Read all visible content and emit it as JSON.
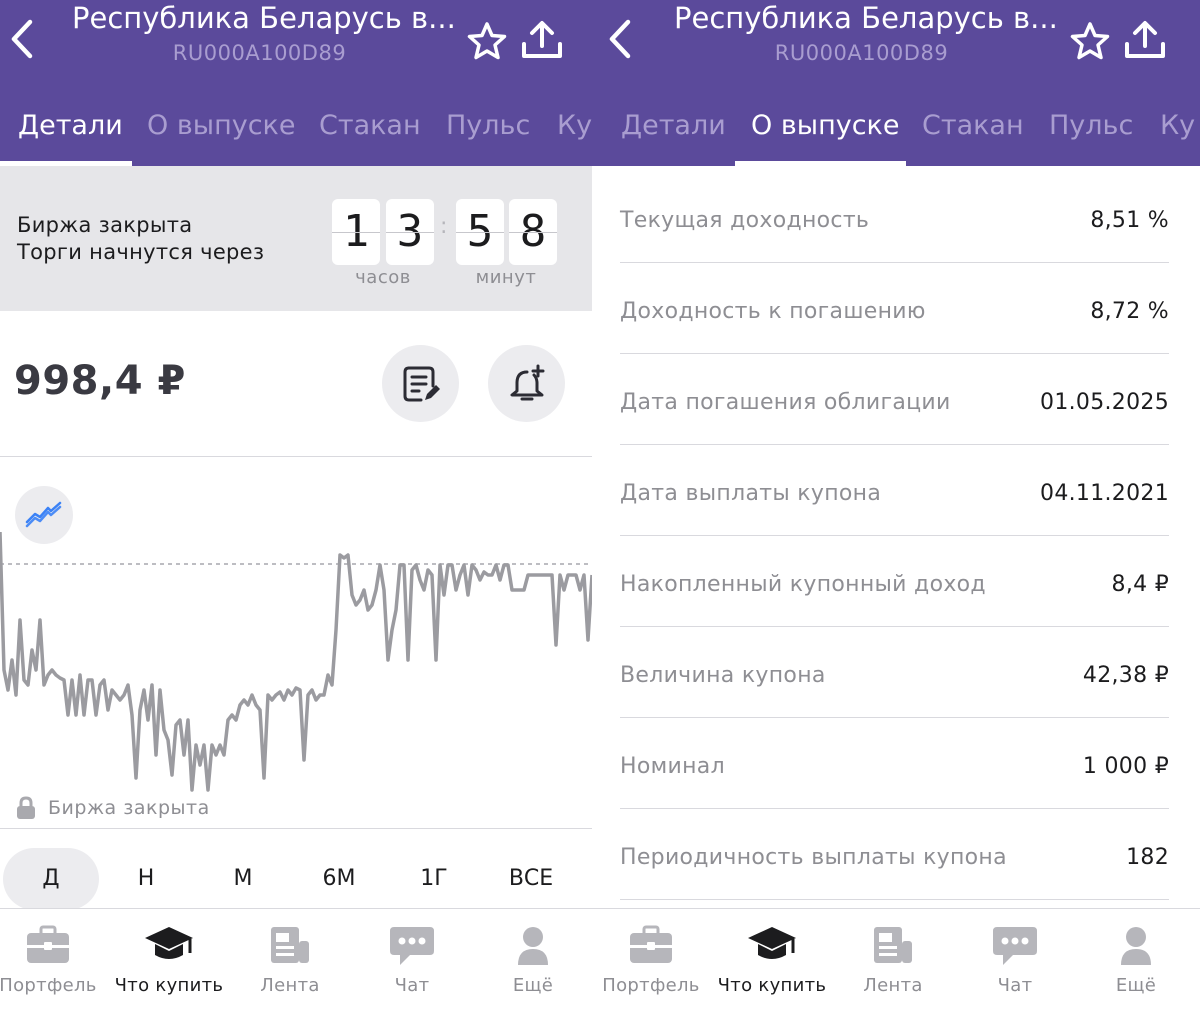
{
  "header": {
    "title": "Республика Беларусь в...",
    "isin": "RU000A100D89",
    "back_icon": "chevron-left-icon",
    "favorite_icon": "star-icon",
    "share_icon": "share-icon",
    "tabs": [
      {
        "label": "Детали"
      },
      {
        "label": "О выпуске"
      },
      {
        "label": "Стакан"
      },
      {
        "label": "Пульс"
      },
      {
        "label": "Ку"
      }
    ]
  },
  "left": {
    "active_tab": "Детали",
    "market": {
      "status": "Биржа закрыта",
      "opens_in": "Торги начнутся через",
      "hours_d1": "1",
      "hours_d2": "3",
      "minutes_d1": "5",
      "minutes_d2": "8",
      "hours_label": "часов",
      "minutes_label": "минут"
    },
    "price": "998,4 ₽",
    "chart": {
      "closed_label": "Биржа закрыта",
      "line_color": "#9b9ba0",
      "chart_type_color": "#3b82f6"
    },
    "periods": [
      {
        "label": "Д",
        "active": true
      },
      {
        "label": "Н",
        "active": false
      },
      {
        "label": "М",
        "active": false
      },
      {
        "label": "6М",
        "active": false
      },
      {
        "label": "1Г",
        "active": false
      },
      {
        "label": "ВСЕ",
        "active": false
      }
    ]
  },
  "right": {
    "active_tab": "О выпуске",
    "rows": [
      {
        "label": "Текущая доходность",
        "value": "8,51 %"
      },
      {
        "label": "Доходность к погашению",
        "value": "8,72 %"
      },
      {
        "label": "Дата погашения облигации",
        "value": "01.05.2025"
      },
      {
        "label": "Дата выплаты купона",
        "value": "04.11.2021"
      },
      {
        "label": "Накопленный купонный доход",
        "value": "8,4 ₽"
      },
      {
        "label": "Величина купона",
        "value": "42,38 ₽"
      },
      {
        "label": "Номинал",
        "value": "1 000 ₽"
      },
      {
        "label": "Периодичность выплаты купона",
        "value": "182"
      }
    ]
  },
  "bottom_nav": [
    {
      "label": "Портфель",
      "icon": "briefcase-icon",
      "active": false
    },
    {
      "label": "Что купить",
      "icon": "graduation-cap-icon",
      "active": true
    },
    {
      "label": "Лента",
      "icon": "newspaper-icon",
      "active": false
    },
    {
      "label": "Чат",
      "icon": "chat-icon",
      "active": false
    },
    {
      "label": "Ещё",
      "icon": "user-icon",
      "active": false
    }
  ],
  "colors": {
    "header_bg": "#5b4a9b",
    "tab_inactive": "#a99dd0",
    "text_primary": "#1c1c1e",
    "text_secondary": "#8e8e93"
  }
}
